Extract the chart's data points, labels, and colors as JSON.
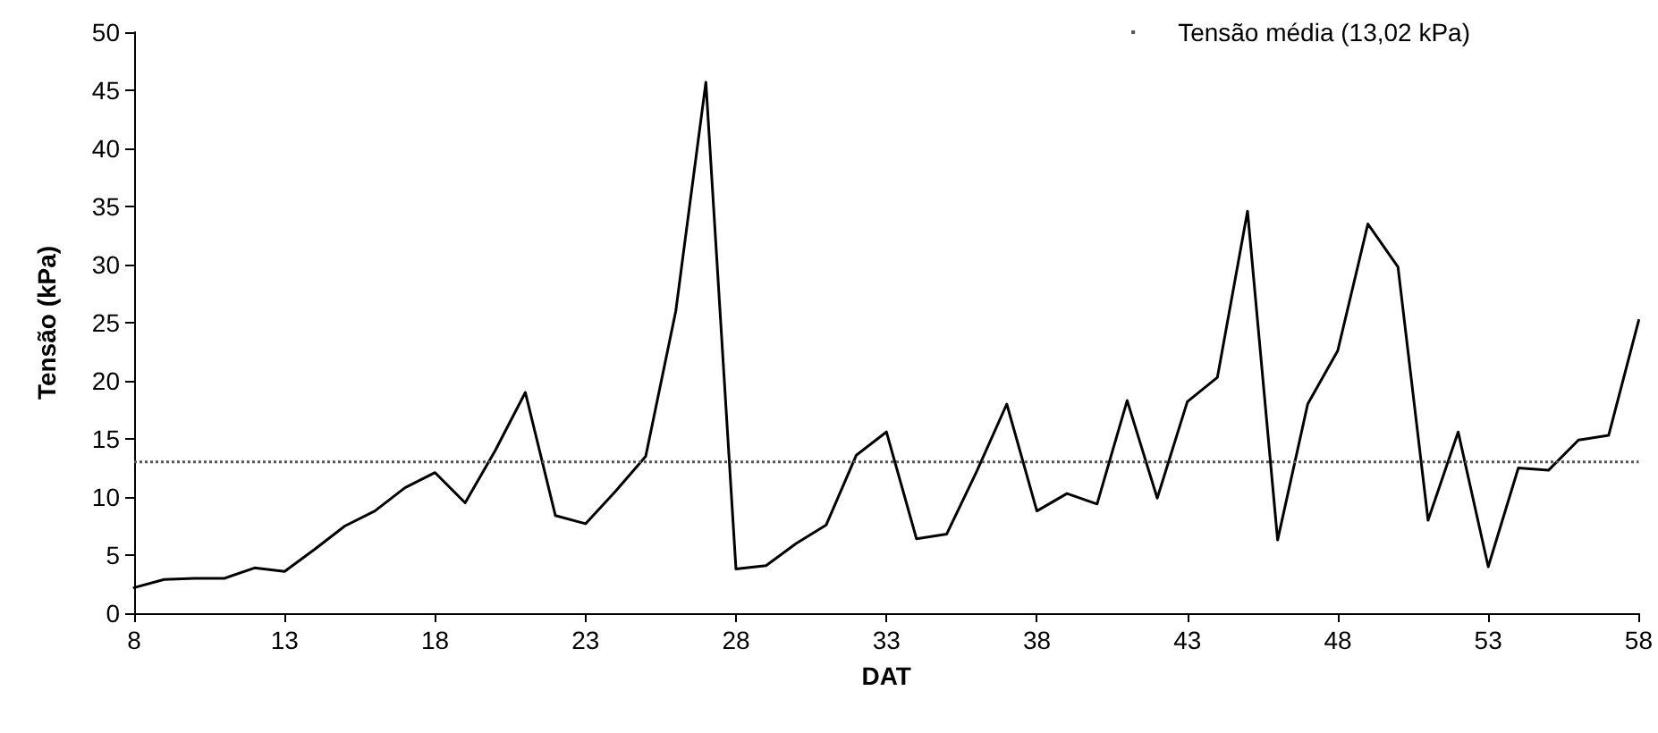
{
  "chart_data": {
    "type": "line",
    "xlabel": "DAT",
    "ylabel": "Tensão (kPa)",
    "x": [
      8,
      9,
      10,
      11,
      12,
      13,
      14,
      15,
      16,
      17,
      18,
      19,
      20,
      21,
      22,
      23,
      24,
      25,
      26,
      27,
      28,
      29,
      30,
      31,
      32,
      33,
      34,
      35,
      36,
      37,
      38,
      39,
      40,
      41,
      42,
      43,
      44,
      45,
      46,
      47,
      48,
      49,
      50,
      51,
      52,
      53,
      54,
      55,
      56,
      57,
      58
    ],
    "series": [
      {
        "color": "#000000",
        "values": [
          2.2,
          2.9,
          3,
          3,
          3.9,
          3.6,
          5.5,
          7.5,
          8.8,
          10.8,
          12.1,
          9.5,
          14,
          19,
          8.4,
          7.7,
          10.5,
          13.5,
          26,
          45.7,
          3.8,
          4.1,
          6,
          7.6,
          13.6,
          15.6,
          6.4,
          6.8,
          12.2,
          18,
          8.8,
          10.3,
          9.4,
          18.3,
          9.9,
          18.2,
          20.3,
          34.6,
          6.3,
          18,
          22.6,
          33.5,
          29.8,
          8,
          15.6,
          4,
          12.5,
          12.3,
          14.9,
          15.3,
          25.2
        ]
      }
    ],
    "xlim": [
      8,
      58
    ],
    "xticks": [
      8,
      13,
      18,
      23,
      28,
      33,
      38,
      43,
      48,
      53,
      58
    ],
    "ylim": [
      0,
      50
    ],
    "yticks": [
      0,
      5,
      10,
      15,
      20,
      25,
      30,
      35,
      40,
      45,
      50
    ],
    "ref_lines": [
      {
        "axis": "y",
        "value": 13.02,
        "label": "Tensão média (13,02 kPa)",
        "color": "#555555",
        "line_style": "dotted"
      }
    ],
    "grid": false,
    "legend": "top right",
    "marker": "none",
    "line_style": "solid"
  }
}
